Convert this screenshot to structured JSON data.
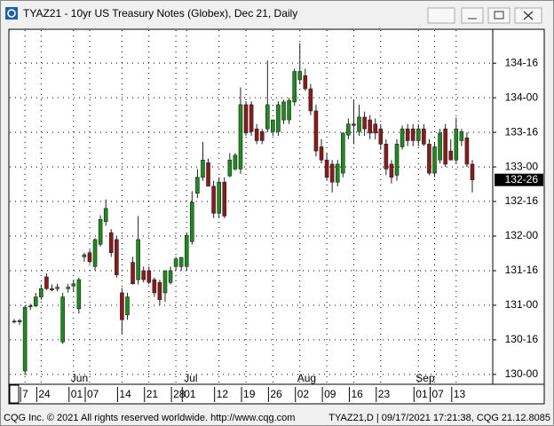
{
  "window": {
    "title": "TYAZ21 - 10yr US Treasury Notes (Globex), Dec 21, Daily"
  },
  "chart_data": {
    "type": "candlestick",
    "categories": [
      null,
      null,
      "7",
      null,
      null,
      "24",
      null,
      null,
      null,
      null,
      null,
      "01",
      null,
      null,
      "07",
      null,
      null,
      null,
      null,
      null,
      "14",
      null,
      null,
      null,
      null,
      "21",
      null,
      null,
      null,
      null,
      "28",
      null,
      "01",
      null,
      null,
      null,
      null,
      null,
      "12",
      null,
      null,
      null,
      null,
      "19",
      null,
      null,
      null,
      null,
      "26",
      null,
      null,
      null,
      null,
      "02",
      null,
      null,
      null,
      null,
      "09",
      null,
      null,
      null,
      null,
      "16",
      null,
      null,
      null,
      null,
      "23",
      null,
      null,
      null,
      null,
      null,
      null,
      "01",
      null,
      null,
      "07",
      null,
      null,
      null,
      "13",
      null,
      null,
      null
    ],
    "month_labels": [
      null,
      null,
      null,
      null,
      null,
      null,
      null,
      null,
      null,
      null,
      null,
      "Jun",
      null,
      null,
      null,
      null,
      null,
      null,
      null,
      null,
      null,
      null,
      null,
      null,
      null,
      null,
      null,
      null,
      null,
      null,
      null,
      null,
      "Jul",
      null,
      null,
      null,
      null,
      null,
      null,
      null,
      null,
      null,
      null,
      null,
      null,
      null,
      null,
      null,
      null,
      null,
      null,
      null,
      null,
      "Aug",
      null,
      null,
      null,
      null,
      null,
      null,
      null,
      null,
      null,
      null,
      null,
      null,
      null,
      null,
      null,
      null,
      null,
      null,
      null,
      null,
      null,
      "Sep",
      null,
      null,
      null,
      null,
      null,
      null,
      null,
      null,
      null,
      null
    ],
    "open": [
      130.77,
      130.76,
      130.05,
      130.98,
      130.99,
      131.12,
      131.41,
      131.24,
      131.24,
      130.47,
      131.24,
      131.28,
      130.95,
      131.7,
      131.76,
      131.56,
      131.88,
      132.21,
      132.05,
      131.95,
      131.18,
      130.86,
      131.62,
      131.37,
      131.5,
      131.5,
      131.37,
      131.33,
      131.18,
      131.33,
      131.56,
      131.56,
      131.56,
      131.92,
      132.62,
      132.85,
      133.06,
      132.72,
      132.33,
      132.78,
      132.87,
      132.97,
      132.97,
      133.9,
      133.9,
      133.55,
      133.51,
      133.55,
      133.51,
      133.51,
      133.68,
      133.68,
      133.94,
      134.26,
      134.32,
      134.13,
      133.81,
      133.29,
      133.1,
      133.04,
      132.78,
      132.91,
      133.46,
      133.62,
      133.51,
      133.72,
      133.68,
      133.62,
      133.55,
      133.33,
      133.04,
      132.88,
      133.29,
      133.55,
      133.55,
      133.38,
      133.55,
      133.33,
      132.91,
      133.1,
      133.55,
      133.23,
      133.1,
      133.38,
      133.42,
      133.04
    ],
    "high": [
      130.8,
      130.8,
      131.0,
      131.02,
      131.18,
      131.3,
      131.46,
      131.3,
      131.31,
      131.18,
      131.31,
      131.37,
      131.4,
      131.76,
      131.8,
      131.97,
      132.3,
      132.53,
      132.1,
      132.0,
      131.25,
      131.18,
      131.7,
      132.29,
      131.56,
      131.56,
      131.4,
      131.37,
      131.5,
      131.56,
      131.7,
      131.7,
      132.05,
      132.65,
      132.97,
      133.36,
      133.12,
      132.8,
      132.85,
      132.85,
      133.2,
      133.2,
      134.15,
      133.95,
      133.95,
      133.62,
      133.55,
      134.54,
      133.65,
      133.95,
      133.97,
      134.0,
      134.42,
      134.79,
      134.42,
      134.2,
      133.9,
      133.4,
      133.2,
      133.1,
      133.1,
      133.5,
      133.7,
      133.97,
      133.9,
      133.8,
      133.75,
      133.7,
      133.62,
      133.4,
      133.1,
      133.4,
      133.6,
      133.62,
      133.62,
      133.62,
      133.62,
      133.4,
      133.35,
      133.55,
      133.62,
      133.4,
      133.71,
      133.55,
      133.5,
      133.1
    ],
    "low": [
      130.74,
      130.72,
      129.99,
      130.93,
      130.97,
      131.08,
      131.22,
      131.2,
      131.2,
      130.44,
      131.18,
      131.2,
      130.88,
      131.63,
      131.6,
      131.5,
      131.85,
      132.15,
      131.7,
      131.4,
      130.59,
      130.79,
      131.3,
      131.3,
      131.33,
      131.3,
      131.12,
      131.0,
      131.05,
      131.3,
      131.5,
      131.5,
      131.5,
      131.88,
      132.55,
      132.8,
      132.72,
      132.26,
      132.26,
      132.26,
      132.85,
      132.95,
      132.9,
      133.45,
      133.45,
      133.33,
      133.33,
      133.5,
      133.45,
      133.45,
      133.62,
      133.62,
      133.88,
      134.2,
      134.1,
      133.75,
      133.15,
      133.05,
      132.8,
      132.63,
      132.72,
      132.85,
      133.4,
      133.33,
      133.45,
      133.45,
      133.4,
      133.4,
      133.25,
      132.88,
      132.76,
      132.8,
      133.25,
      133.3,
      133.3,
      133.3,
      133.3,
      132.88,
      132.85,
      133.05,
      133.0,
      133.1,
      133.05,
      133.3,
      133.0,
      132.63
    ],
    "close": [
      130.76,
      130.78,
      130.97,
      130.99,
      131.12,
      131.24,
      131.24,
      131.22,
      131.26,
      131.12,
      131.26,
      131.31,
      131.37,
      131.73,
      131.63,
      131.95,
      132.24,
      132.4,
      131.76,
      131.44,
      130.79,
      131.12,
      131.31,
      131.95,
      131.37,
      131.33,
      131.18,
      131.08,
      131.5,
      131.5,
      131.67,
      131.69,
      132.01,
      132.49,
      132.85,
      133.1,
      132.72,
      132.33,
      132.78,
      132.29,
      133.1,
      133.17,
      133.9,
      133.49,
      133.51,
      133.38,
      133.38,
      133.9,
      133.68,
      133.9,
      133.94,
      133.96,
      134.38,
      134.38,
      134.13,
      133.81,
      133.23,
      133.1,
      132.85,
      132.78,
      133.04,
      133.49,
      133.62,
      133.6,
      133.72,
      133.55,
      133.49,
      133.49,
      133.33,
      132.97,
      132.85,
      133.33,
      133.55,
      133.38,
      133.38,
      133.55,
      133.33,
      132.91,
      133.29,
      133.49,
      133.04,
      133.1,
      133.55,
      133.51,
      133.04,
      132.8125
    ],
    "up_color": "#1f8a1f",
    "down_color": "#8b1a1a",
    "ylim": [
      129.87,
      134.99
    ],
    "yticks": [
      {
        "value": 130,
        "label": "130-00"
      },
      {
        "value": 130.5,
        "label": "130-16"
      },
      {
        "value": 131,
        "label": "131-00"
      },
      {
        "value": 131.5,
        "label": "131-16"
      },
      {
        "value": 132,
        "label": "132-00"
      },
      {
        "value": 132.5,
        "label": "132-16"
      },
      {
        "value": 133,
        "label": "133-00"
      },
      {
        "value": 133.5,
        "label": "133-16"
      },
      {
        "value": 134,
        "label": "134-00"
      },
      {
        "value": 134.5,
        "label": "134-16"
      }
    ],
    "grid": true,
    "last_price": {
      "value": 132.8125,
      "label": "132-26"
    }
  },
  "footer": {
    "left": "CQG Inc. © 2021 All rights reserved worldwide. http://www.cqg.com",
    "right": "TYAZ21,D | 09/17/2021 17:21:38, CQG 21.12.8085"
  }
}
